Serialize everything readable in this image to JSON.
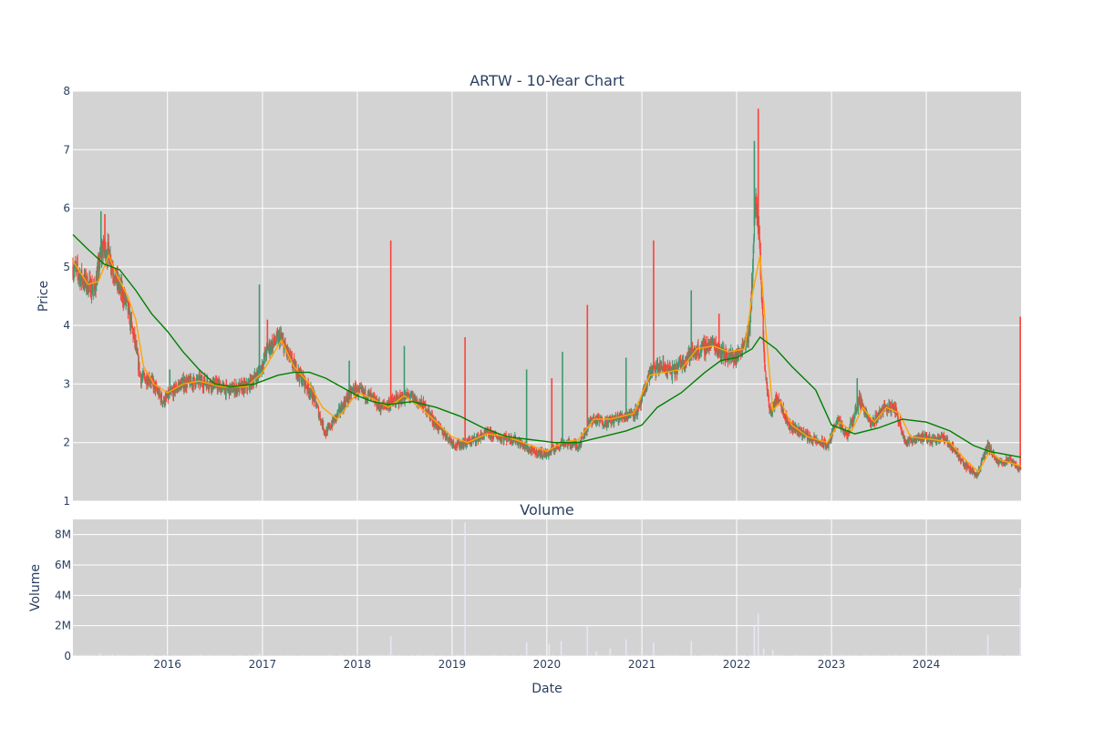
{
  "chart_data": [
    {
      "type": "candlestick",
      "title": "ARTW - 10-Year Chart",
      "ylabel": "Price",
      "ylim": [
        1,
        8
      ],
      "yticks": [
        1,
        2,
        3,
        4,
        5,
        6,
        7,
        8
      ],
      "xlim": [
        "2015-01-02",
        "2024-12-31"
      ],
      "xticks": [
        "2016",
        "2017",
        "2018",
        "2019",
        "2020",
        "2021",
        "2022",
        "2023",
        "2024"
      ],
      "grid": true,
      "colors": {
        "background": "#d3d3d3",
        "grid": "#ffffff",
        "up": "#3d9970",
        "down": "#ff4136",
        "ma_short": "#ffa500",
        "ma_long": "#008000"
      },
      "price_path": [
        [
          "2015-01-02",
          5.0
        ],
        [
          "2015-02-15",
          4.75
        ],
        [
          "2015-03-25",
          4.6
        ],
        [
          "2015-04-25",
          5.3
        ],
        [
          "2015-05-20",
          5.25
        ],
        [
          "2015-06-15",
          4.8
        ],
        [
          "2015-07-25",
          4.4
        ],
        [
          "2015-08-25",
          3.8
        ],
        [
          "2015-09-20",
          3.1
        ],
        [
          "2015-10-25",
          3.1
        ],
        [
          "2015-12-15",
          2.7
        ],
        [
          "2016-02-20",
          3.0
        ],
        [
          "2016-05-01",
          3.05
        ],
        [
          "2016-07-01",
          3.0
        ],
        [
          "2016-08-15",
          2.9
        ],
        [
          "2016-11-01",
          2.95
        ],
        [
          "2016-12-20",
          3.2
        ],
        [
          "2017-01-20",
          3.6
        ],
        [
          "2017-03-10",
          3.8
        ],
        [
          "2017-04-20",
          3.4
        ],
        [
          "2017-06-01",
          3.1
        ],
        [
          "2017-07-15",
          2.8
        ],
        [
          "2017-09-01",
          2.15
        ],
        [
          "2017-10-20",
          2.5
        ],
        [
          "2017-12-15",
          2.9
        ],
        [
          "2018-02-15",
          2.8
        ],
        [
          "2018-04-01",
          2.6
        ],
        [
          "2018-05-20",
          2.7
        ],
        [
          "2018-07-20",
          2.8
        ],
        [
          "2018-09-20",
          2.6
        ],
        [
          "2018-11-01",
          2.3
        ],
        [
          "2019-01-15",
          1.95
        ],
        [
          "2019-03-01",
          2.0
        ],
        [
          "2019-05-15",
          2.15
        ],
        [
          "2019-07-01",
          2.1
        ],
        [
          "2019-09-01",
          2.05
        ],
        [
          "2019-11-01",
          1.85
        ],
        [
          "2020-01-01",
          1.8
        ],
        [
          "2020-03-01",
          2.0
        ],
        [
          "2020-05-01",
          1.95
        ],
        [
          "2020-06-20",
          2.4
        ],
        [
          "2020-08-20",
          2.35
        ],
        [
          "2020-10-20",
          2.45
        ],
        [
          "2020-12-20",
          2.55
        ],
        [
          "2021-02-01",
          3.2
        ],
        [
          "2021-03-15",
          3.3
        ],
        [
          "2021-05-01",
          3.2
        ],
        [
          "2021-07-01",
          3.5
        ],
        [
          "2021-08-20",
          3.6
        ],
        [
          "2021-10-01",
          3.7
        ],
        [
          "2021-11-15",
          3.5
        ],
        [
          "2022-01-01",
          3.45
        ],
        [
          "2022-02-20",
          3.9
        ],
        [
          "2022-03-15",
          6.2
        ],
        [
          "2022-03-28",
          5.5
        ],
        [
          "2022-04-20",
          3.2
        ],
        [
          "2022-05-10",
          2.5
        ],
        [
          "2022-06-10",
          2.8
        ],
        [
          "2022-07-20",
          2.3
        ],
        [
          "2022-09-01",
          2.2
        ],
        [
          "2022-10-20",
          2.05
        ],
        [
          "2022-12-20",
          1.95
        ],
        [
          "2023-01-20",
          2.4
        ],
        [
          "2023-03-01",
          2.1
        ],
        [
          "2023-04-20",
          2.75
        ],
        [
          "2023-06-01",
          2.3
        ],
        [
          "2023-07-20",
          2.6
        ],
        [
          "2023-09-01",
          2.6
        ],
        [
          "2023-10-15",
          2.0
        ],
        [
          "2023-12-01",
          2.1
        ],
        [
          "2024-01-20",
          2.05
        ],
        [
          "2024-03-01",
          2.1
        ],
        [
          "2024-04-15",
          1.9
        ],
        [
          "2024-06-01",
          1.6
        ],
        [
          "2024-07-15",
          1.45
        ],
        [
          "2024-08-25",
          1.95
        ],
        [
          "2024-10-01",
          1.65
        ],
        [
          "2024-11-15",
          1.7
        ],
        [
          "2024-12-28",
          1.55
        ]
      ],
      "spikes": [
        [
          "2015-04-20",
          5.95
        ],
        [
          "2015-05-05",
          5.9
        ],
        [
          "2016-01-10",
          3.25
        ],
        [
          "2016-07-10",
          3.1
        ],
        [
          "2016-12-20",
          4.7
        ],
        [
          "2017-01-20",
          4.1
        ],
        [
          "2017-12-01",
          3.4
        ],
        [
          "2018-05-10",
          5.45
        ],
        [
          "2018-07-01",
          3.65
        ],
        [
          "2019-02-20",
          3.8
        ],
        [
          "2019-10-15",
          3.25
        ],
        [
          "2020-01-20",
          3.1
        ],
        [
          "2020-03-01",
          3.55
        ],
        [
          "2020-06-05",
          4.35
        ],
        [
          "2020-11-01",
          3.45
        ],
        [
          "2021-02-15",
          5.45
        ],
        [
          "2021-07-10",
          4.6
        ],
        [
          "2021-10-25",
          4.2
        ],
        [
          "2022-03-10",
          7.15
        ],
        [
          "2022-03-25",
          7.7
        ],
        [
          "2023-04-10",
          3.1
        ],
        [
          "2024-12-28",
          4.15
        ]
      ],
      "series": [
        {
          "name": "",
          "values": [
            [
              "2015-01-02",
              5.1
            ],
            [
              "2015-03-01",
              4.7
            ],
            [
              "2015-04-10",
              4.75
            ],
            [
              "2015-05-20",
              5.2
            ],
            [
              "2015-06-15",
              4.9
            ],
            [
              "2015-08-01",
              4.5
            ],
            [
              "2015-09-01",
              4.1
            ],
            [
              "2015-10-01",
              3.3
            ],
            [
              "2015-11-10",
              3.0
            ],
            [
              "2016-01-01",
              2.85
            ],
            [
              "2016-03-01",
              3.0
            ],
            [
              "2016-05-01",
              3.05
            ],
            [
              "2016-08-01",
              2.95
            ],
            [
              "2016-11-01",
              2.95
            ],
            [
              "2017-01-01",
              3.2
            ],
            [
              "2017-03-15",
              3.75
            ],
            [
              "2017-05-01",
              3.3
            ],
            [
              "2017-07-01",
              3.0
            ],
            [
              "2017-08-20",
              2.6
            ],
            [
              "2017-10-15",
              2.4
            ],
            [
              "2018-01-01",
              2.85
            ],
            [
              "2018-03-01",
              2.75
            ],
            [
              "2018-05-01",
              2.6
            ],
            [
              "2018-07-01",
              2.8
            ],
            [
              "2018-09-01",
              2.6
            ],
            [
              "2018-11-01",
              2.35
            ],
            [
              "2019-01-01",
              2.1
            ],
            [
              "2019-03-01",
              2.0
            ],
            [
              "2019-05-15",
              2.15
            ],
            [
              "2019-08-01",
              2.1
            ],
            [
              "2019-11-01",
              1.95
            ],
            [
              "2020-01-01",
              1.85
            ],
            [
              "2020-03-01",
              2.0
            ],
            [
              "2020-05-01",
              2.05
            ],
            [
              "2020-07-01",
              2.4
            ],
            [
              "2020-09-01",
              2.4
            ],
            [
              "2020-12-01",
              2.5
            ],
            [
              "2021-02-01",
              3.15
            ],
            [
              "2021-04-01",
              3.2
            ],
            [
              "2021-06-01",
              3.25
            ],
            [
              "2021-08-01",
              3.6
            ],
            [
              "2021-10-01",
              3.65
            ],
            [
              "2021-12-01",
              3.55
            ],
            [
              "2022-02-01",
              3.6
            ],
            [
              "2022-03-01",
              4.5
            ],
            [
              "2022-04-01",
              5.2
            ],
            [
              "2022-04-25",
              3.8
            ],
            [
              "2022-05-20",
              2.55
            ],
            [
              "2022-06-20",
              2.7
            ],
            [
              "2022-08-01",
              2.3
            ],
            [
              "2022-10-01",
              2.1
            ],
            [
              "2022-12-15",
              2.0
            ],
            [
              "2023-02-01",
              2.35
            ],
            [
              "2023-03-20",
              2.2
            ],
            [
              "2023-05-01",
              2.6
            ],
            [
              "2023-06-15",
              2.35
            ],
            [
              "2023-08-01",
              2.6
            ],
            [
              "2023-09-20",
              2.5
            ],
            [
              "2023-11-01",
              2.1
            ],
            [
              "2024-02-01",
              2.05
            ],
            [
              "2024-04-01",
              2.0
            ],
            [
              "2024-06-01",
              1.7
            ],
            [
              "2024-07-20",
              1.5
            ],
            [
              "2024-09-01",
              1.85
            ],
            [
              "2024-10-15",
              1.7
            ],
            [
              "2024-12-31",
              1.6
            ]
          ]
        },
        {
          "name": "",
          "values": [
            [
              "2015-01-02",
              5.55
            ],
            [
              "2015-03-01",
              5.3
            ],
            [
              "2015-05-01",
              5.05
            ],
            [
              "2015-07-01",
              4.95
            ],
            [
              "2015-09-01",
              4.6
            ],
            [
              "2015-11-01",
              4.2
            ],
            [
              "2016-01-01",
              3.9
            ],
            [
              "2016-03-01",
              3.55
            ],
            [
              "2016-05-01",
              3.25
            ],
            [
              "2016-07-01",
              3.0
            ],
            [
              "2016-09-01",
              2.95
            ],
            [
              "2016-12-01",
              3.0
            ],
            [
              "2017-03-01",
              3.15
            ],
            [
              "2017-05-01",
              3.2
            ],
            [
              "2017-07-01",
              3.2
            ],
            [
              "2017-09-01",
              3.1
            ],
            [
              "2017-11-01",
              2.95
            ],
            [
              "2018-01-01",
              2.8
            ],
            [
              "2018-03-01",
              2.7
            ],
            [
              "2018-05-01",
              2.65
            ],
            [
              "2018-08-01",
              2.7
            ],
            [
              "2018-11-01",
              2.6
            ],
            [
              "2019-02-01",
              2.45
            ],
            [
              "2019-05-01",
              2.25
            ],
            [
              "2019-08-01",
              2.1
            ],
            [
              "2019-11-01",
              2.05
            ],
            [
              "2020-02-01",
              2.0
            ],
            [
              "2020-05-01",
              2.0
            ],
            [
              "2020-08-01",
              2.1
            ],
            [
              "2020-11-01",
              2.2
            ],
            [
              "2021-01-01",
              2.3
            ],
            [
              "2021-03-01",
              2.6
            ],
            [
              "2021-06-01",
              2.85
            ],
            [
              "2021-09-01",
              3.2
            ],
            [
              "2021-11-01",
              3.4
            ],
            [
              "2022-01-01",
              3.45
            ],
            [
              "2022-03-01",
              3.6
            ],
            [
              "2022-04-01",
              3.8
            ],
            [
              "2022-06-01",
              3.6
            ],
            [
              "2022-08-01",
              3.3
            ],
            [
              "2022-11-01",
              2.9
            ],
            [
              "2023-01-01",
              2.3
            ],
            [
              "2023-04-01",
              2.15
            ],
            [
              "2023-07-01",
              2.25
            ],
            [
              "2023-10-01",
              2.4
            ],
            [
              "2024-01-01",
              2.35
            ],
            [
              "2024-04-01",
              2.2
            ],
            [
              "2024-07-01",
              1.95
            ],
            [
              "2024-09-01",
              1.85
            ],
            [
              "2024-12-31",
              1.75
            ]
          ]
        }
      ]
    },
    {
      "type": "bar",
      "title": "Volume",
      "xlabel": "Date",
      "ylabel": "Volume",
      "ylim": [
        0,
        9000000
      ],
      "yticks": [
        0,
        2000000,
        4000000,
        6000000,
        8000000
      ],
      "ytick_labels": [
        "0",
        "2M",
        "4M",
        "6M",
        "8M"
      ],
      "xlim": [
        "2015-01-02",
        "2024-12-31"
      ],
      "xticks": [
        "2016",
        "2017",
        "2018",
        "2019",
        "2020",
        "2021",
        "2022",
        "2023",
        "2024"
      ],
      "grid": true,
      "colors": {
        "background": "#d3d3d3",
        "bar": "#e6e6f5"
      },
      "base_volume": 60000,
      "spikes": [
        [
          "2015-04-15",
          200000
        ],
        [
          "2016-12-20",
          150000
        ],
        [
          "2018-05-10",
          1300000
        ],
        [
          "2019-02-20",
          8800000
        ],
        [
          "2019-10-15",
          900000
        ],
        [
          "2020-01-10",
          800000
        ],
        [
          "2020-02-25",
          1000000
        ],
        [
          "2020-06-05",
          2000000
        ],
        [
          "2020-07-10",
          300000
        ],
        [
          "2020-09-01",
          500000
        ],
        [
          "2020-11-01",
          1100000
        ],
        [
          "2021-02-15",
          900000
        ],
        [
          "2021-07-10",
          1000000
        ],
        [
          "2022-03-10",
          2000000
        ],
        [
          "2022-03-25",
          2800000
        ],
        [
          "2022-04-15",
          500000
        ],
        [
          "2022-05-20",
          400000
        ],
        [
          "2024-08-25",
          1400000
        ],
        [
          "2024-12-28",
          4500000
        ]
      ]
    }
  ]
}
